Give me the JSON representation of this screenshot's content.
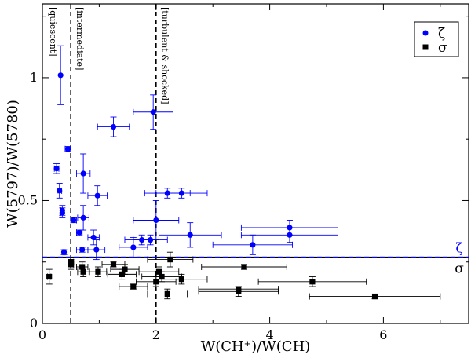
{
  "chart_data": {
    "type": "scatter",
    "xlabel": "W(CH⁺)/W(CH)",
    "ylabel": "W(5797)/W(5780)",
    "xlim": [
      0,
      7.5
    ],
    "ylim": [
      0,
      1.3
    ],
    "xticks": [
      0,
      2,
      4,
      6
    ],
    "yticks": [
      0,
      0.5,
      1
    ],
    "annotations": [
      "[quiescent]",
      "[intermediate]",
      "[turbulent & shocked]"
    ],
    "vlines": [
      0.5,
      2.0
    ],
    "hline": 0.27,
    "side_labels": {
      "above": "ζ",
      "below": "σ"
    },
    "legend_position": "top-right",
    "series": [
      {
        "name": "ζ",
        "marker": "circle",
        "color": "#0000ff",
        "points": [
          {
            "x": 0.32,
            "y": 1.01,
            "xerr": 0.0,
            "yerr": 0.12
          },
          {
            "x": 1.95,
            "y": 0.86,
            "xerr": 0.35,
            "yerr": 0.07
          },
          {
            "x": 1.25,
            "y": 0.8,
            "xerr": 0.28,
            "yerr": 0.04
          },
          {
            "x": 0.45,
            "y": 0.71,
            "xerr": 0.05,
            "yerr": 0.01
          },
          {
            "x": 0.25,
            "y": 0.63,
            "xerr": 0.04,
            "yerr": 0.02
          },
          {
            "x": 0.72,
            "y": 0.61,
            "xerr": 0.12,
            "yerr": 0.08
          },
          {
            "x": 0.3,
            "y": 0.54,
            "xerr": 0.04,
            "yerr": 0.03
          },
          {
            "x": 0.97,
            "y": 0.52,
            "xerr": 0.17,
            "yerr": 0.04
          },
          {
            "x": 2.2,
            "y": 0.53,
            "xerr": 0.4,
            "yerr": 0.02
          },
          {
            "x": 2.45,
            "y": 0.53,
            "xerr": 0.45,
            "yerr": 0.02
          },
          {
            "x": 0.35,
            "y": 0.46,
            "xerr": 0.03,
            "yerr": 0.02
          },
          {
            "x": 0.35,
            "y": 0.45,
            "xerr": 0.03,
            "yerr": 0.02
          },
          {
            "x": 0.72,
            "y": 0.43,
            "xerr": 0.1,
            "yerr": 0.05
          },
          {
            "x": 2.0,
            "y": 0.42,
            "xerr": 0.4,
            "yerr": 0.08
          },
          {
            "x": 0.55,
            "y": 0.42,
            "xerr": 0.05,
            "yerr": 0.01
          },
          {
            "x": 4.35,
            "y": 0.39,
            "xerr": 0.85,
            "yerr": 0.03
          },
          {
            "x": 4.35,
            "y": 0.36,
            "xerr": 0.85,
            "yerr": 0.03
          },
          {
            "x": 2.6,
            "y": 0.36,
            "xerr": 0.55,
            "yerr": 0.05
          },
          {
            "x": 0.65,
            "y": 0.37,
            "xerr": 0.05,
            "yerr": 0.01
          },
          {
            "x": 0.9,
            "y": 0.35,
            "xerr": 0.1,
            "yerr": 0.03
          },
          {
            "x": 1.75,
            "y": 0.34,
            "xerr": 0.3,
            "yerr": 0.02
          },
          {
            "x": 1.9,
            "y": 0.34,
            "xerr": 0.3,
            "yerr": 0.02
          },
          {
            "x": 3.7,
            "y": 0.32,
            "xerr": 0.7,
            "yerr": 0.04
          },
          {
            "x": 1.6,
            "y": 0.31,
            "xerr": 0.25,
            "yerr": 0.04
          },
          {
            "x": 0.7,
            "y": 0.3,
            "xerr": 0.1,
            "yerr": 0.01
          },
          {
            "x": 0.95,
            "y": 0.3,
            "xerr": 0.15,
            "yerr": 0.04
          },
          {
            "x": 0.38,
            "y": 0.29,
            "xerr": 0.02,
            "yerr": 0.01
          }
        ]
      },
      {
        "name": "σ",
        "marker": "square",
        "color": "#000000",
        "points": [
          {
            "x": 0.12,
            "y": 0.19,
            "xerr": 0.03,
            "yerr": 0.03
          },
          {
            "x": 0.5,
            "y": 0.24,
            "xerr": 0.05,
            "yerr": 0.02
          },
          {
            "x": 0.5,
            "y": 0.25,
            "xerr": 0.05,
            "yerr": 0.01
          },
          {
            "x": 0.7,
            "y": 0.23,
            "xerr": 0.1,
            "yerr": 0.02
          },
          {
            "x": 0.72,
            "y": 0.21,
            "xerr": 0.1,
            "yerr": 0.02
          },
          {
            "x": 0.98,
            "y": 0.21,
            "xerr": 0.15,
            "yerr": 0.02
          },
          {
            "x": 1.25,
            "y": 0.24,
            "xerr": 0.2,
            "yerr": 0.01
          },
          {
            "x": 1.4,
            "y": 0.2,
            "xerr": 0.25,
            "yerr": 0.02
          },
          {
            "x": 1.45,
            "y": 0.22,
            "xerr": 0.25,
            "yerr": 0.02
          },
          {
            "x": 1.6,
            "y": 0.15,
            "xerr": 0.25,
            "yerr": 0.01
          },
          {
            "x": 2.0,
            "y": 0.17,
            "xerr": 0.35,
            "yerr": 0.02
          },
          {
            "x": 2.05,
            "y": 0.21,
            "xerr": 0.35,
            "yerr": 0.02
          },
          {
            "x": 2.1,
            "y": 0.19,
            "xerr": 0.35,
            "yerr": 0.02
          },
          {
            "x": 2.2,
            "y": 0.12,
            "xerr": 0.35,
            "yerr": 0.02
          },
          {
            "x": 2.25,
            "y": 0.26,
            "xerr": 0.4,
            "yerr": 0.03
          },
          {
            "x": 2.45,
            "y": 0.18,
            "xerr": 0.45,
            "yerr": 0.02
          },
          {
            "x": 3.45,
            "y": 0.14,
            "xerr": 0.7,
            "yerr": 0.01
          },
          {
            "x": 3.45,
            "y": 0.13,
            "xerr": 0.7,
            "yerr": 0.02
          },
          {
            "x": 3.55,
            "y": 0.23,
            "xerr": 0.75,
            "yerr": 0.01
          },
          {
            "x": 4.75,
            "y": 0.17,
            "xerr": 0.95,
            "yerr": 0.02
          },
          {
            "x": 5.85,
            "y": 0.11,
            "xerr": 1.15,
            "yerr": 0.01
          }
        ]
      }
    ]
  }
}
